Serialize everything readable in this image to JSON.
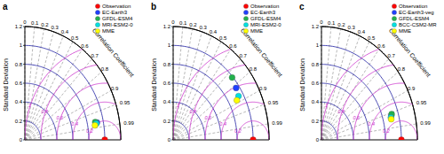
{
  "chart_data": [
    {
      "type": "taylor",
      "title": "a",
      "y_label": "Standard Deviation",
      "angular_label": "Correlation Coefficient",
      "ylim": [
        0,
        1.2
      ],
      "yticks": [
        0,
        0.2,
        0.4,
        0.6,
        0.8,
        1,
        1.2
      ],
      "correlation_ticks": [
        0,
        0.1,
        0.2,
        0.3,
        0.4,
        0.5,
        0.6,
        0.7,
        0.8,
        0.9,
        0.95,
        0.99
      ],
      "rmsd_ticks": [
        0.2,
        0.4,
        0.6,
        0.8,
        1
      ],
      "grid": true,
      "legend": "upper right",
      "series": [
        {
          "name": "Observation",
          "color": "#ff0000",
          "marker": "circle",
          "std": [
            1
          ],
          "correlation": [
            1
          ]
        },
        {
          "name": "EC-Earth3",
          "color": "#1f3fff",
          "marker": "circle",
          "std": [
            0.92
          ],
          "correlation": [
            0.98
          ]
        },
        {
          "name": "GFDL-ESM4",
          "color": "#22b14c",
          "marker": "circle",
          "std": [
            0.9
          ],
          "correlation": [
            0.978
          ]
        },
        {
          "name": "MRI-ESM2-0",
          "color": "#00e0e0",
          "marker": "circle",
          "std": [
            0.91
          ],
          "correlation": [
            0.982
          ]
        },
        {
          "name": "MME",
          "color": "#ffff00",
          "marker": "circle",
          "std": [
            0.89
          ],
          "correlation": [
            0.985
          ]
        }
      ]
    },
    {
      "type": "taylor",
      "title": "b",
      "y_label": "Standard Deviation",
      "angular_label": "Correlation Coefficient",
      "ylim": [
        0,
        1.2
      ],
      "yticks": [
        0,
        0.2,
        0.4,
        0.6,
        0.8,
        1,
        1.2
      ],
      "correlation_ticks": [
        0,
        0.1,
        0.2,
        0.3,
        0.4,
        0.5,
        0.6,
        0.7,
        0.8,
        0.9,
        0.95,
        0.99
      ],
      "rmsd_ticks": [
        0.2,
        0.4,
        0.6,
        0.8,
        1
      ],
      "grid": true,
      "legend": "upper right",
      "series": [
        {
          "name": "Observation",
          "color": "#ff0000",
          "marker": "circle",
          "std": [
            1
          ],
          "correlation": [
            1
          ]
        },
        {
          "name": "EC-Earth3",
          "color": "#1f3fff",
          "marker": "circle",
          "std": [
            0.96
          ],
          "correlation": [
            0.82
          ]
        },
        {
          "name": "GFDL-ESM4",
          "color": "#22b14c",
          "marker": "circle",
          "std": [
            0.99
          ],
          "correlation": [
            0.745
          ]
        },
        {
          "name": "MRI-ESM2-0",
          "color": "#00e0e0",
          "marker": "circle",
          "std": [
            0.94
          ],
          "correlation": [
            0.87
          ]
        },
        {
          "name": "MME",
          "color": "#ffff00",
          "marker": "circle",
          "std": [
            0.9
          ],
          "correlation": [
            0.885
          ]
        }
      ]
    },
    {
      "type": "taylor",
      "title": "c",
      "y_label": "Standard Deviation",
      "angular_label": "Correlation Coefficient",
      "ylim": [
        0,
        1.2
      ],
      "yticks": [
        0,
        0.2,
        0.4,
        0.6,
        0.8,
        1,
        1.2
      ],
      "correlation_ticks": [
        0,
        0.1,
        0.2,
        0.3,
        0.4,
        0.5,
        0.6,
        0.7,
        0.8,
        0.9,
        0.95,
        0.99
      ],
      "rmsd_ticks": [
        0.2,
        0.4,
        0.6,
        0.8,
        1
      ],
      "grid": true,
      "legend": "upper right",
      "series": [
        {
          "name": "Observation",
          "color": "#ff0000",
          "marker": "circle",
          "std": [
            1
          ],
          "correlation": [
            1
          ]
        },
        {
          "name": "EC-Earth3-veg",
          "color": "#1f3fff",
          "marker": "circle",
          "std": [
            0.91
          ],
          "correlation": [
            0.96
          ]
        },
        {
          "name": "GFDL-ESM4",
          "color": "#22b14c",
          "marker": "circle",
          "std": [
            0.92
          ],
          "correlation": [
            0.955
          ]
        },
        {
          "name": "BCC-CSM2-MR",
          "color": "#00e0e0",
          "marker": "circle",
          "std": [
            0.9
          ],
          "correlation": [
            0.965
          ]
        },
        {
          "name": "MME",
          "color": "#ffff00",
          "marker": "circle",
          "std": [
            0.9
          ],
          "correlation": [
            0.97
          ]
        }
      ]
    }
  ]
}
